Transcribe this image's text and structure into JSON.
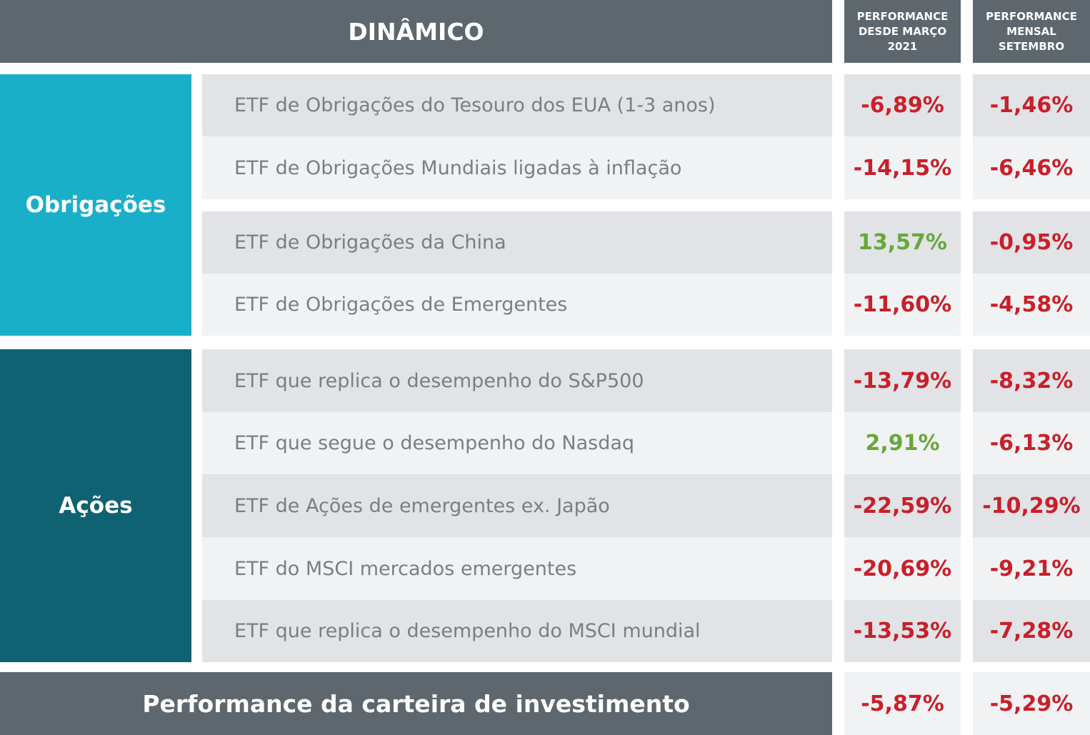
{
  "header": {
    "title": "DINÂMICO",
    "col1": "PERFORMANCE DESDE MARÇO 2021",
    "col2": "PERFORMANCE MENSAL SETEMBRO"
  },
  "colors": {
    "header": "#5d676d",
    "bonds": "#1aafc9",
    "equities": "#0f6272",
    "negative": "#c8202a",
    "positive": "#67a83c"
  },
  "groups": [
    {
      "label": "Obrigações",
      "rows": [
        {
          "name": "ETF de Obrigações do Tesouro dos EUA (1-3 anos)",
          "since_march": "-6,89%",
          "september": "-1,46%"
        },
        {
          "name": "ETF de Obrigações Mundiais ligadas à inflação",
          "since_march": "-14,15%",
          "september": "-6,46%"
        },
        {
          "name": "ETF de Obrigações da China",
          "since_march": "13,57%",
          "september": "-0,95%"
        },
        {
          "name": "ETF de Obrigações de Emergentes",
          "since_march": "-11,60%",
          "september": "-4,58%"
        }
      ]
    },
    {
      "label": "Ações",
      "rows": [
        {
          "name": "ETF que replica o desempenho do S&P500",
          "since_march": "-13,79%",
          "september": "-8,32%"
        },
        {
          "name": "ETF que segue o desempenho do Nasdaq",
          "since_march": "2,91%",
          "september": "-6,13%"
        },
        {
          "name": "ETF de Ações de emergentes ex. Japão",
          "since_march": "-22,59%",
          "september": "-10,29%"
        },
        {
          "name": "ETF do MSCI  mercados emergentes",
          "since_march": "-20,69%",
          "september": "-9,21%"
        },
        {
          "name": "ETF que replica o desempenho do MSCI mundial",
          "since_march": "-13,53%",
          "september": "-7,28%"
        }
      ]
    }
  ],
  "total": {
    "label": "Performance da carteira de investimento",
    "since_march": "-5,87%",
    "september": "-5,29%"
  }
}
